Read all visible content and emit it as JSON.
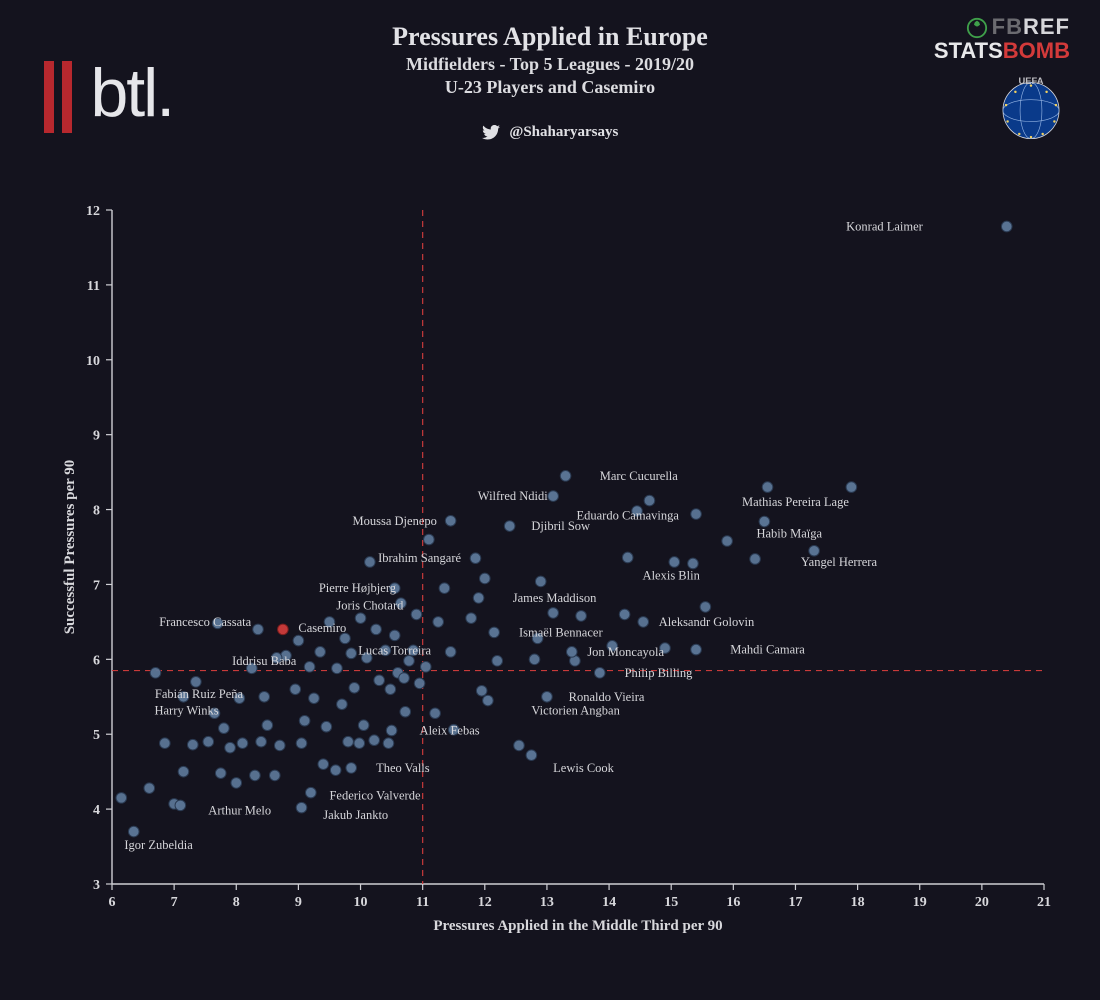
{
  "header": {
    "title": "Pressures Applied in Europe",
    "subtitle1": "Midfielders - Top 5 Leagues - 2019/20",
    "subtitle2": "U-23 Players and Casemiro",
    "twitter_handle": "@Shaharyarsays",
    "btl_text": "btl.",
    "fbref_fb": "FB",
    "fbref_ref": "REF",
    "statsbomb_s": "STATS",
    "statsbomb_b": "BOMB",
    "uefa_text": "UEFA"
  },
  "chart": {
    "type": "scatter",
    "xlabel": "Pressures Applied in the Middle Third per 90",
    "ylabel": "Successful Pressures per 90",
    "xlim": [
      6,
      21
    ],
    "ylim": [
      3,
      12
    ],
    "xtick_step": 1,
    "ytick_step": 1,
    "vline_x": 11.0,
    "hline_y": 5.85,
    "ref_line_color": "#c83a3a",
    "ref_line_dash": "6,5",
    "background_color": "#14131e",
    "axis_color": "#cfcfd4",
    "point_fill": "#5b7596",
    "point_stroke": "#2a3a52",
    "point_radius": 5.3,
    "highlight_fill": "#c83a3a",
    "highlight_stroke": "#7a1e1e",
    "label_fontsize": 12.5,
    "axis_label_fontsize": 15,
    "tick_fontsize": 14,
    "labeled_points": [
      {
        "name": "Konrad Laimer",
        "x": 20.4,
        "y": 11.78,
        "lx": 19.05,
        "ly": 11.78,
        "anchor": "end"
      },
      {
        "name": "Mathias Pereira Lage",
        "x": 17.9,
        "y": 8.3,
        "lx": 17.0,
        "ly": 8.1,
        "anchor": "middle"
      },
      {
        "name": "Marc Cucurella",
        "x": 13.3,
        "y": 8.45,
        "lx": 13.85,
        "ly": 8.45,
        "anchor": "start"
      },
      {
        "name": "Wilfred Ndidi",
        "x": 13.1,
        "y": 8.18,
        "lx": 12.45,
        "ly": 8.18,
        "anchor": "middle"
      },
      {
        "name": "Eduardo Camavinga",
        "x": 14.45,
        "y": 7.98,
        "lx": 14.3,
        "ly": 7.92,
        "anchor": "middle"
      },
      {
        "name": "Habib Maïga",
        "x": 16.5,
        "y": 7.84,
        "lx": 16.9,
        "ly": 7.68,
        "anchor": "middle"
      },
      {
        "name": "Djibril Sow",
        "x": 12.4,
        "y": 7.78,
        "lx": 12.75,
        "ly": 7.78,
        "anchor": "start"
      },
      {
        "name": "Moussa Djenepo",
        "x": 11.45,
        "y": 7.85,
        "lx": 10.55,
        "ly": 7.85,
        "anchor": "middle"
      },
      {
        "name": "Yangel Herrera",
        "x": 17.3,
        "y": 7.45,
        "lx": 17.7,
        "ly": 7.3,
        "anchor": "middle"
      },
      {
        "name": "Ibrahim Sangaré",
        "x": 11.85,
        "y": 7.35,
        "lx": 10.95,
        "ly": 7.35,
        "anchor": "middle"
      },
      {
        "name": "Alexis Blin",
        "x": 15.05,
        "y": 7.3,
        "lx": 15.0,
        "ly": 7.12,
        "anchor": "middle"
      },
      {
        "name": "Pierre Højbjerg",
        "x": 10.55,
        "y": 6.95,
        "lx": 9.95,
        "ly": 6.95,
        "anchor": "middle"
      },
      {
        "name": "James Maddison",
        "x": 11.9,
        "y": 6.82,
        "lx": 12.45,
        "ly": 6.82,
        "anchor": "start"
      },
      {
        "name": "Joris Chotard",
        "x": 10.65,
        "y": 6.75,
        "lx": 10.15,
        "ly": 6.72,
        "anchor": "middle"
      },
      {
        "name": "Aleksandr Golovin",
        "x": 14.25,
        "y": 6.6,
        "lx": 14.8,
        "ly": 6.5,
        "anchor": "start"
      },
      {
        "name": "Francesco Cassata",
        "x": 7.7,
        "y": 6.48,
        "lx": 7.5,
        "ly": 6.5,
        "anchor": "middle"
      },
      {
        "name": "Casemiro",
        "x": 8.75,
        "y": 6.4,
        "lx": 9.0,
        "ly": 6.42,
        "anchor": "start",
        "highlight": true
      },
      {
        "name": "Ismaël Bennacer",
        "x": 12.15,
        "y": 6.36,
        "lx": 12.55,
        "ly": 6.36,
        "anchor": "start"
      },
      {
        "name": "Mahdi Camara",
        "x": 15.4,
        "y": 6.13,
        "lx": 15.95,
        "ly": 6.13,
        "anchor": "start"
      },
      {
        "name": "Jon Moncayola",
        "x": 13.4,
        "y": 6.1,
        "lx": 13.65,
        "ly": 6.1,
        "anchor": "start"
      },
      {
        "name": "Lucas Torreira",
        "x": 10.85,
        "y": 6.12,
        "lx": 10.55,
        "ly": 6.12,
        "anchor": "middle"
      },
      {
        "name": "Iddrisu Baba",
        "x": 8.65,
        "y": 6.02,
        "lx": 8.45,
        "ly": 5.98,
        "anchor": "middle"
      },
      {
        "name": "Philip Billing",
        "x": 13.85,
        "y": 5.82,
        "lx": 14.25,
        "ly": 5.82,
        "anchor": "start"
      },
      {
        "name": "Ronaldo Vieira",
        "x": 13.0,
        "y": 5.5,
        "lx": 13.35,
        "ly": 5.5,
        "anchor": "start"
      },
      {
        "name": "Fabián Ruiz Peña",
        "x": 7.15,
        "y": 5.5,
        "lx": 7.4,
        "ly": 5.54,
        "anchor": "middle"
      },
      {
        "name": "Victorien Angban",
        "x": 12.05,
        "y": 5.45,
        "lx": 12.75,
        "ly": 5.32,
        "anchor": "start"
      },
      {
        "name": "Harry Winks",
        "x": 7.65,
        "y": 5.28,
        "lx": 7.2,
        "ly": 5.32,
        "anchor": "middle"
      },
      {
        "name": "Aleix Febas",
        "x": 10.5,
        "y": 5.05,
        "lx": 10.95,
        "ly": 5.05,
        "anchor": "start"
      },
      {
        "name": "Lewis Cook",
        "x": 12.75,
        "y": 4.72,
        "lx": 13.1,
        "ly": 4.55,
        "anchor": "start"
      },
      {
        "name": "Theo Valls",
        "x": 9.85,
        "y": 4.55,
        "lx": 10.25,
        "ly": 4.55,
        "anchor": "start"
      },
      {
        "name": "Federico Valverde",
        "x": 9.2,
        "y": 4.22,
        "lx": 9.5,
        "ly": 4.18,
        "anchor": "start"
      },
      {
        "name": "Arthur Melo",
        "x": 7.1,
        "y": 4.05,
        "lx": 7.55,
        "ly": 3.98,
        "anchor": "start"
      },
      {
        "name": "Jakub Jankto",
        "x": 9.05,
        "y": 4.02,
        "lx": 9.4,
        "ly": 3.92,
        "anchor": "start"
      },
      {
        "name": "Igor Zubeldia",
        "x": 6.35,
        "y": 3.7,
        "lx": 6.75,
        "ly": 3.52,
        "anchor": "middle"
      }
    ],
    "unlabeled_points": [
      {
        "x": 6.15,
        "y": 4.15
      },
      {
        "x": 6.6,
        "y": 4.28
      },
      {
        "x": 6.7,
        "y": 5.82
      },
      {
        "x": 6.85,
        "y": 4.88
      },
      {
        "x": 7.0,
        "y": 4.07
      },
      {
        "x": 7.15,
        "y": 4.5
      },
      {
        "x": 7.3,
        "y": 4.86
      },
      {
        "x": 7.35,
        "y": 5.7
      },
      {
        "x": 7.55,
        "y": 4.9
      },
      {
        "x": 7.75,
        "y": 4.48
      },
      {
        "x": 7.8,
        "y": 5.08
      },
      {
        "x": 7.9,
        "y": 4.82
      },
      {
        "x": 8.0,
        "y": 4.35
      },
      {
        "x": 8.05,
        "y": 5.48
      },
      {
        "x": 8.1,
        "y": 4.88
      },
      {
        "x": 8.25,
        "y": 5.88
      },
      {
        "x": 8.3,
        "y": 4.45
      },
      {
        "x": 8.35,
        "y": 6.4
      },
      {
        "x": 8.4,
        "y": 4.9
      },
      {
        "x": 8.45,
        "y": 5.5
      },
      {
        "x": 8.5,
        "y": 5.12
      },
      {
        "x": 8.62,
        "y": 4.45
      },
      {
        "x": 8.7,
        "y": 4.85
      },
      {
        "x": 8.8,
        "y": 6.05
      },
      {
        "x": 8.95,
        "y": 5.6
      },
      {
        "x": 9.0,
        "y": 6.25
      },
      {
        "x": 9.05,
        "y": 4.88
      },
      {
        "x": 9.1,
        "y": 5.18
      },
      {
        "x": 9.18,
        "y": 5.9
      },
      {
        "x": 9.25,
        "y": 5.48
      },
      {
        "x": 9.35,
        "y": 6.1
      },
      {
        "x": 9.4,
        "y": 4.6
      },
      {
        "x": 9.45,
        "y": 5.1
      },
      {
        "x": 9.5,
        "y": 6.5
      },
      {
        "x": 9.6,
        "y": 4.52
      },
      {
        "x": 9.62,
        "y": 5.88
      },
      {
        "x": 9.7,
        "y": 5.4
      },
      {
        "x": 9.75,
        "y": 6.28
      },
      {
        "x": 9.8,
        "y": 4.9
      },
      {
        "x": 9.85,
        "y": 6.08
      },
      {
        "x": 9.9,
        "y": 5.62
      },
      {
        "x": 9.98,
        "y": 4.88
      },
      {
        "x": 10.0,
        "y": 6.55
      },
      {
        "x": 10.05,
        "y": 5.12
      },
      {
        "x": 10.1,
        "y": 6.02
      },
      {
        "x": 10.15,
        "y": 7.3
      },
      {
        "x": 10.22,
        "y": 4.92
      },
      {
        "x": 10.25,
        "y": 6.4
      },
      {
        "x": 10.3,
        "y": 5.72
      },
      {
        "x": 10.4,
        "y": 6.12
      },
      {
        "x": 10.45,
        "y": 4.88
      },
      {
        "x": 10.48,
        "y": 5.6
      },
      {
        "x": 10.55,
        "y": 6.32
      },
      {
        "x": 10.6,
        "y": 5.82
      },
      {
        "x": 10.7,
        "y": 5.75
      },
      {
        "x": 10.72,
        "y": 5.3
      },
      {
        "x": 10.78,
        "y": 5.98
      },
      {
        "x": 10.9,
        "y": 6.6
      },
      {
        "x": 10.95,
        "y": 5.68
      },
      {
        "x": 11.05,
        "y": 5.9
      },
      {
        "x": 11.1,
        "y": 7.6
      },
      {
        "x": 11.2,
        "y": 5.28
      },
      {
        "x": 11.25,
        "y": 6.5
      },
      {
        "x": 11.35,
        "y": 6.95
      },
      {
        "x": 11.45,
        "y": 6.1
      },
      {
        "x": 11.5,
        "y": 5.06
      },
      {
        "x": 11.78,
        "y": 6.55
      },
      {
        "x": 11.95,
        "y": 5.58
      },
      {
        "x": 12.0,
        "y": 7.08
      },
      {
        "x": 12.2,
        "y": 5.98
      },
      {
        "x": 12.55,
        "y": 4.85
      },
      {
        "x": 12.8,
        "y": 6.0
      },
      {
        "x": 12.85,
        "y": 6.28
      },
      {
        "x": 12.9,
        "y": 7.04
      },
      {
        "x": 13.1,
        "y": 6.62
      },
      {
        "x": 13.45,
        "y": 5.98
      },
      {
        "x": 13.55,
        "y": 6.58
      },
      {
        "x": 14.05,
        "y": 6.18
      },
      {
        "x": 14.3,
        "y": 7.36
      },
      {
        "x": 14.55,
        "y": 6.5
      },
      {
        "x": 14.65,
        "y": 8.12
      },
      {
        "x": 14.9,
        "y": 6.15
      },
      {
        "x": 15.35,
        "y": 7.28
      },
      {
        "x": 15.4,
        "y": 7.94
      },
      {
        "x": 15.55,
        "y": 6.7
      },
      {
        "x": 15.9,
        "y": 7.58
      },
      {
        "x": 16.35,
        "y": 7.34
      },
      {
        "x": 16.55,
        "y": 8.3
      }
    ]
  }
}
